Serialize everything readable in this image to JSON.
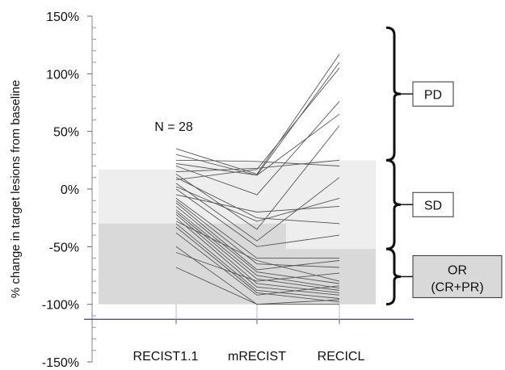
{
  "chart_data": {
    "type": "line",
    "categories": [
      "RECIST1.1",
      "mRECIST",
      "RECICL"
    ],
    "ylabel": "% change in target lesions from baseline",
    "xlabel": "",
    "ylim": [
      -150,
      150
    ],
    "yticks": [
      -150,
      -100,
      -50,
      0,
      50,
      100,
      150
    ],
    "ytick_labels": [
      "-150%",
      "-100%",
      "-50%",
      "0%",
      "50%",
      "100%",
      "150%"
    ],
    "annotation": "N = 28",
    "reference_line": -113,
    "response_categories": [
      {
        "label": "PD",
        "range": [
          25,
          150
        ]
      },
      {
        "label": "SD",
        "range": [
          -52,
          25
        ]
      },
      {
        "label": "OR",
        "sublabel": "(CR+PR)",
        "range": [
          -100,
          -52
        ]
      }
    ],
    "series": [
      {
        "values": [
          35,
          13,
          117
        ]
      },
      {
        "values": [
          30,
          12,
          110
        ]
      },
      {
        "values": [
          25,
          24,
          20
        ]
      },
      {
        "values": [
          22,
          12,
          65
        ]
      },
      {
        "values": [
          20,
          -5,
          76
        ]
      },
      {
        "values": [
          15,
          18,
          25
        ]
      },
      {
        "values": [
          13,
          -35,
          55
        ]
      },
      {
        "values": [
          10,
          -25,
          -30
        ]
      },
      {
        "values": [
          8,
          17,
          105
        ]
      },
      {
        "values": [
          5,
          -45,
          10
        ]
      },
      {
        "values": [
          2,
          -28,
          -8
        ]
      },
      {
        "values": [
          0,
          -50,
          -40
        ]
      },
      {
        "values": [
          -5,
          -20,
          -15
        ]
      },
      {
        "values": [
          -8,
          -60,
          -60
        ]
      },
      {
        "values": [
          -10,
          -65,
          -68
        ]
      },
      {
        "values": [
          -12,
          -70,
          -62
        ]
      },
      {
        "values": [
          -15,
          -72,
          -82
        ]
      },
      {
        "values": [
          -18,
          -75,
          -86
        ]
      },
      {
        "values": [
          -20,
          -78,
          -88
        ]
      },
      {
        "values": [
          -22,
          -82,
          -90
        ]
      },
      {
        "values": [
          -25,
          -85,
          -92
        ]
      },
      {
        "values": [
          -28,
          -62,
          -80
        ]
      },
      {
        "values": [
          -30,
          -88,
          -95
        ]
      },
      {
        "values": [
          -33,
          -90,
          -98
        ]
      },
      {
        "values": [
          -38,
          -92,
          -84
        ]
      },
      {
        "values": [
          -50,
          -100,
          -100
        ]
      },
      {
        "values": [
          -55,
          -80,
          -73
        ]
      },
      {
        "values": [
          -68,
          -100,
          -96
        ]
      }
    ],
    "grid": false,
    "legend": "none"
  }
}
